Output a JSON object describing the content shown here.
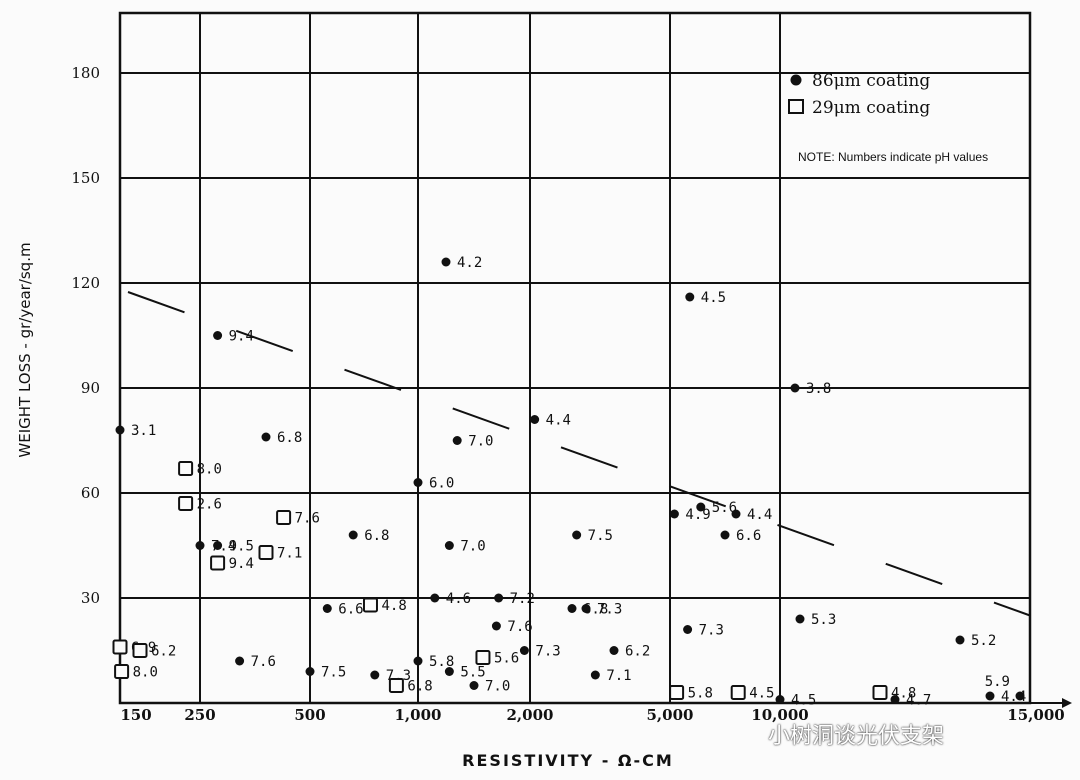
{
  "chart_data": {
    "type": "scatter",
    "xlabel": "RESISTIVITY - Ω-CM",
    "ylabel": "WEIGHT LOSS - gr/year/sq.m",
    "x_ticks": [
      "150",
      "250",
      "500",
      "1,000",
      "2,000",
      "5,000",
      "10,000",
      "15,000"
    ],
    "y_ticks": [
      30,
      60,
      90,
      120,
      150,
      180
    ],
    "ylim": [
      0,
      182
    ],
    "grid": true,
    "legend_position": "top-right",
    "note": "NOTE:  Numbers indicate pH values",
    "series": [
      {
        "name": "86μm coating",
        "marker": "filled-circle",
        "points": [
          {
            "x": 150,
            "y": 78,
            "label": "3.1"
          },
          {
            "x": 250,
            "y": 45,
            "label": "7.4"
          },
          {
            "x": 290,
            "y": 105,
            "label": "9.4"
          },
          {
            "x": 290,
            "y": 45,
            "label": "9.5"
          },
          {
            "x": 340,
            "y": 12,
            "label": "7.6"
          },
          {
            "x": 400,
            "y": 76,
            "label": "6.8"
          },
          {
            "x": 500,
            "y": 9,
            "label": "7.5"
          },
          {
            "x": 580,
            "y": 27,
            "label": "6.6"
          },
          {
            "x": 700,
            "y": 48,
            "label": "6.8"
          },
          {
            "x": 800,
            "y": 8,
            "label": "7.3"
          },
          {
            "x": 1000,
            "y": 63,
            "label": "6.0"
          },
          {
            "x": 1000,
            "y": 12,
            "label": "5.8"
          },
          {
            "x": 1150,
            "y": 30,
            "label": "4.6"
          },
          {
            "x": 1250,
            "y": 126,
            "label": "4.2"
          },
          {
            "x": 1280,
            "y": 45,
            "label": "7.0"
          },
          {
            "x": 1280,
            "y": 9,
            "label": "5.5"
          },
          {
            "x": 1350,
            "y": 75,
            "label": "7.0"
          },
          {
            "x": 1500,
            "y": 5,
            "label": "7.0"
          },
          {
            "x": 1700,
            "y": 22,
            "label": "7.6"
          },
          {
            "x": 1720,
            "y": 30,
            "label": "7.2"
          },
          {
            "x": 1950,
            "y": 15,
            "label": "7.3"
          },
          {
            "x": 2100,
            "y": 81,
            "label": "4.4"
          },
          {
            "x": 2900,
            "y": 27,
            "label": "6.8"
          },
          {
            "x": 3000,
            "y": 48,
            "label": "7.5"
          },
          {
            "x": 3200,
            "y": 27,
            "label": "7.3"
          },
          {
            "x": 3400,
            "y": 8,
            "label": "7.1"
          },
          {
            "x": 3800,
            "y": 15,
            "label": "6.2"
          },
          {
            "x": 5200,
            "y": 54,
            "label": "4.9"
          },
          {
            "x": 5800,
            "y": 21,
            "label": "7.3"
          },
          {
            "x": 5900,
            "y": 116,
            "label": "4.5"
          },
          {
            "x": 6400,
            "y": 56,
            "label": "5.6"
          },
          {
            "x": 7500,
            "y": 48,
            "label": "6.6"
          },
          {
            "x": 8000,
            "y": 54,
            "label": "4.4"
          },
          {
            "x": 10000,
            "y": 1,
            "label": "4.5"
          },
          {
            "x": 10300,
            "y": 90,
            "label": "3.8"
          },
          {
            "x": 10400,
            "y": 24,
            "label": "5.3"
          },
          {
            "x": 12300,
            "y": 1,
            "label": "4.7"
          },
          {
            "x": 13600,
            "y": 18,
            "label": "5.2"
          },
          {
            "x": 14200,
            "y": 2,
            "label": "4.4"
          },
          {
            "x": 14800,
            "y": 2,
            "label": "5.9"
          }
        ]
      },
      {
        "name": "29μm coating",
        "marker": "open-square",
        "points": [
          {
            "x": 150,
            "y": 16,
            "label": "6.9"
          },
          {
            "x": 152,
            "y": 9,
            "label": "8.0"
          },
          {
            "x": 175,
            "y": 15,
            "label": "6.2"
          },
          {
            "x": 232,
            "y": 67,
            "label": "8.0"
          },
          {
            "x": 232,
            "y": 57,
            "label": "2.6"
          },
          {
            "x": 290,
            "y": 40,
            "label": "9.4"
          },
          {
            "x": 400,
            "y": 43,
            "label": "7.1"
          },
          {
            "x": 440,
            "y": 53,
            "label": "7.6"
          },
          {
            "x": 780,
            "y": 28,
            "label": "4.8"
          },
          {
            "x": 900,
            "y": 5,
            "label": "6.8"
          },
          {
            "x": 1580,
            "y": 13,
            "label": "5.6"
          },
          {
            "x": 5300,
            "y": 3,
            "label": "5.8"
          },
          {
            "x": 8100,
            "y": 3,
            "label": "4.5"
          },
          {
            "x": 12000,
            "y": 3,
            "label": "4.8"
          }
        ]
      }
    ],
    "trend_line": {
      "style": "dashed",
      "points": [
        {
          "x": 150,
          "y": 118
        },
        {
          "x": 15000,
          "y": 25
        }
      ]
    }
  },
  "watermark": "小树洞谈光伏支架"
}
